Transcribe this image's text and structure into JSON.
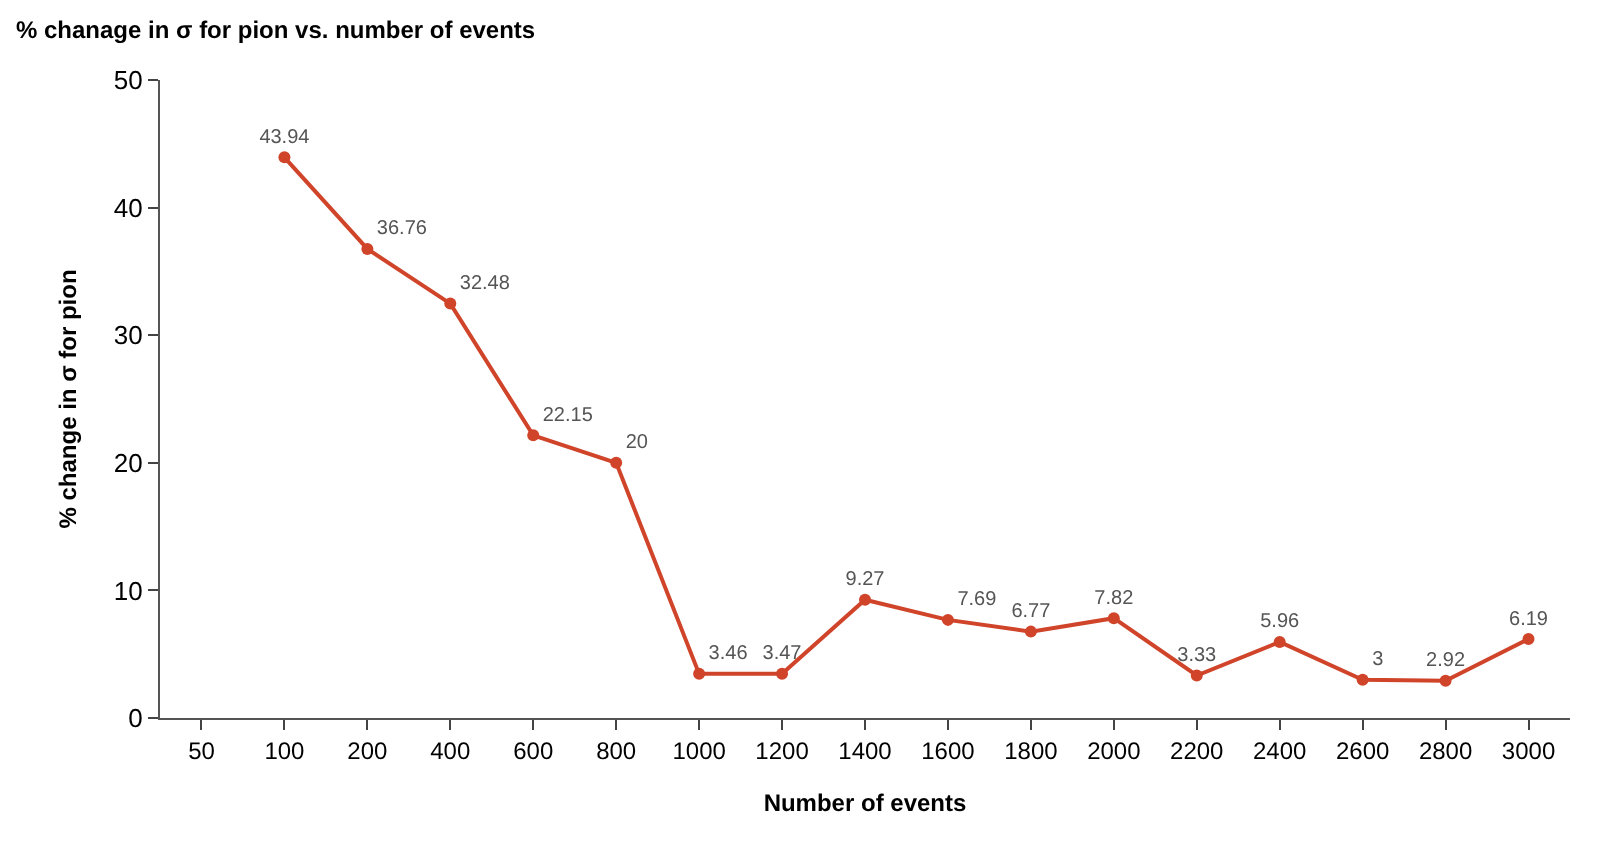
{
  "chart_data": {
    "type": "line",
    "title": "% chanage in σ for pion vs. number of events",
    "xlabel": "Number of events",
    "ylabel": "% change in σ for pion",
    "categories": [
      "50",
      "100",
      "200",
      "400",
      "600",
      "800",
      "1000",
      "1200",
      "1400",
      "1600",
      "1800",
      "2000",
      "2200",
      "2400",
      "2600",
      "2800",
      "3000"
    ],
    "series": [
      {
        "color": "#d0442a",
        "values": [
          null,
          43.94,
          36.76,
          32.48,
          22.15,
          20,
          3.46,
          3.47,
          9.27,
          7.69,
          6.77,
          7.82,
          3.33,
          5.96,
          3,
          2.92,
          6.19
        ]
      }
    ],
    "ylim": [
      0,
      50
    ],
    "yticks": [
      0,
      10,
      20,
      30,
      40,
      50
    ],
    "legend": false,
    "marker": "circle",
    "line_style": "solid",
    "data_labels": true
  }
}
